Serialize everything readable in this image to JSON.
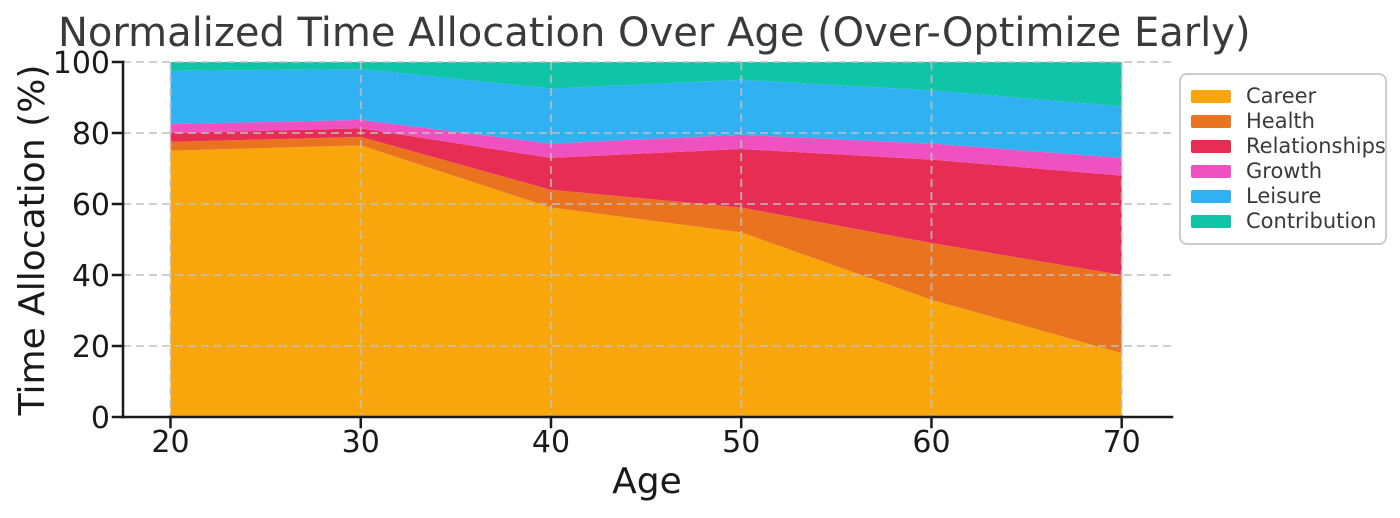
{
  "figure": {
    "background": "#FFFFFF",
    "title_color": "#3A3A3A",
    "axis_color": "#1A1A1A",
    "tick_label_color": "#1A1A1A",
    "gridline_color": "#BFBFBF",
    "legend_border_color": "#CCCCCC"
  },
  "chart_data": {
    "type": "area",
    "variant": "stacked-normalized",
    "title": "Normalized Time Allocation Over Age (Over-Optimize Early)",
    "xlabel": "Age",
    "ylabel": "Time Allocation (%)",
    "x": [
      20,
      30,
      40,
      50,
      60,
      70
    ],
    "xtick_labels": [
      "20",
      "30",
      "40",
      "50",
      "60",
      "70"
    ],
    "ytick_values": [
      0,
      20,
      40,
      60,
      80,
      100
    ],
    "ytick_labels": [
      "0",
      "20",
      "40",
      "60",
      "80",
      "100"
    ],
    "ylim": [
      0,
      100
    ],
    "xlim": [
      17.5,
      72.6
    ],
    "grid": {
      "visible": true,
      "style": "dashed",
      "color": "#BFBFBF",
      "on_top": true
    },
    "legend": {
      "position": "outside-upper-right",
      "entries": [
        "Career",
        "Health",
        "Relationships",
        "Growth",
        "Leisure",
        "Contribution"
      ]
    },
    "series": [
      {
        "name": "Career",
        "color": "#F9A60D",
        "values": [
          75,
          76.5,
          59,
          52,
          33,
          18
        ]
      },
      {
        "name": "Health",
        "color": "#E9731F",
        "values": [
          2.5,
          2.4,
          5,
          7,
          16,
          22
        ]
      },
      {
        "name": "Relationships",
        "color": "#E82D55",
        "values": [
          2.5,
          2.4,
          9,
          16.5,
          23.5,
          28
        ]
      },
      {
        "name": "Growth",
        "color": "#EF52C0",
        "values": [
          2.5,
          2.4,
          4,
          4,
          4.5,
          5
        ]
      },
      {
        "name": "Leisure",
        "color": "#30B1F2",
        "values": [
          15,
          14.3,
          15.5,
          15.5,
          15,
          14.5
        ]
      },
      {
        "name": "Contribution",
        "color": "#10C4A7",
        "values": [
          2.5,
          2,
          7.5,
          5,
          8,
          12.5
        ]
      }
    ]
  }
}
